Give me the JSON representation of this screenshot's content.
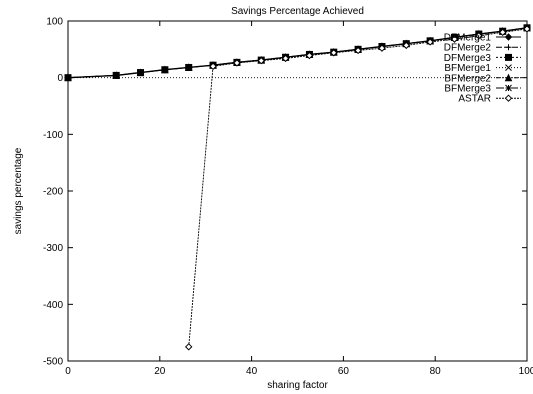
{
  "chart_data": {
    "type": "line",
    "title": "Savings Percentage Achieved",
    "xlabel": "sharing factor",
    "ylabel": "savings percentage",
    "xlim": [
      0,
      100
    ],
    "ylim": [
      -500,
      100
    ],
    "xticks": [
      0,
      20,
      40,
      60,
      80,
      100
    ],
    "yticks": [
      100,
      0,
      -100,
      -200,
      -300,
      -400,
      -500
    ],
    "xtick_labels": [
      "0",
      "20",
      "40",
      "60",
      "80",
      "100"
    ],
    "ytick_labels": [
      "100",
      "0",
      "-100",
      "-200",
      "-300",
      "-400",
      "-500"
    ],
    "grid": false,
    "zero_line": true,
    "legend_position": "top-right",
    "series": [
      {
        "name": "DFMerge1",
        "marker": "diamond",
        "dash": "",
        "x": [
          0,
          10.5,
          15.8,
          21.1,
          26.3,
          31.6,
          36.8,
          42.1,
          47.4,
          52.6,
          57.9,
          63.2,
          68.4,
          73.7,
          78.9,
          84.2,
          89.5,
          94.7,
          100
        ],
        "y": [
          0,
          4,
          9,
          14,
          18,
          22,
          27,
          31,
          36,
          41,
          45,
          50,
          55,
          60,
          65,
          71,
          77,
          82,
          88
        ]
      },
      {
        "name": "DFMerge2",
        "marker": "plus",
        "dash": "6,2",
        "x": [
          0,
          10.5,
          15.8,
          21.1,
          26.3,
          31.6,
          36.8,
          42.1,
          47.4,
          52.6,
          57.9,
          63.2,
          68.4,
          73.7,
          78.9,
          84.2,
          89.5,
          94.7,
          100
        ],
        "y": [
          0,
          4,
          9,
          14,
          18,
          22,
          27,
          31,
          36,
          41,
          45,
          50,
          55,
          60,
          65,
          71,
          77,
          82,
          88
        ]
      },
      {
        "name": "DFMerge3",
        "marker": "square",
        "dash": "2,2",
        "x": [
          0,
          10.5,
          15.8,
          21.1,
          26.3,
          31.6,
          36.8,
          42.1,
          47.4,
          52.6,
          57.9,
          63.2,
          68.4,
          73.7,
          78.9,
          84.2,
          89.5,
          94.7,
          100
        ],
        "y": [
          0,
          4,
          9,
          14,
          18,
          22,
          27,
          31,
          36,
          41,
          45,
          50,
          55,
          60,
          65,
          71,
          77,
          82,
          88
        ]
      },
      {
        "name": "BFMerge1",
        "marker": "x",
        "dash": "1,2",
        "x": [
          0,
          10.5,
          15.8,
          21.1,
          26.3,
          31.6,
          36.8,
          42.1,
          47.4,
          52.6,
          57.9,
          63.2,
          68.4,
          73.7,
          78.9,
          84.2,
          89.5,
          94.7,
          100
        ],
        "y": [
          0,
          4,
          9,
          14,
          18,
          22,
          27,
          31,
          36,
          41,
          45,
          50,
          55,
          60,
          65,
          71,
          77,
          82,
          88
        ]
      },
      {
        "name": "BFMerge2",
        "marker": "triangle",
        "dash": "4,2,1,2",
        "x": [
          0,
          10.5,
          15.8,
          21.1,
          26.3,
          31.6,
          36.8,
          42.1,
          47.4,
          52.6,
          57.9,
          63.2,
          68.4,
          73.7,
          78.9,
          84.2,
          89.5,
          94.7,
          100
        ],
        "y": [
          0,
          4,
          9,
          14,
          18,
          22,
          27,
          31,
          36,
          41,
          45,
          50,
          55,
          60,
          65,
          71,
          77,
          82,
          88
        ]
      },
      {
        "name": "BFMerge3",
        "marker": "star",
        "dash": "8,2,2,2",
        "x": [
          0,
          10.5,
          15.8,
          21.1,
          26.3,
          31.6,
          36.8,
          42.1,
          47.4,
          52.6,
          57.9,
          63.2,
          68.4,
          73.7,
          78.9,
          84.2,
          89.5,
          94.7,
          100
        ],
        "y": [
          0,
          4,
          9,
          14,
          18,
          22,
          27,
          31,
          36,
          41,
          45,
          50,
          55,
          60,
          65,
          71,
          77,
          82,
          88
        ]
      },
      {
        "name": "ASTAR",
        "marker": "diamond-open",
        "dash": "2,1",
        "x": [
          26.3,
          31.6,
          36.8,
          42.1,
          47.4,
          52.6,
          57.9,
          63.2,
          68.4,
          73.7,
          78.9,
          84.2,
          89.5,
          94.7,
          100
        ],
        "y": [
          -475,
          20,
          26,
          30,
          34,
          39,
          44,
          48,
          52,
          57,
          63,
          68,
          74,
          80,
          86
        ]
      }
    ]
  }
}
